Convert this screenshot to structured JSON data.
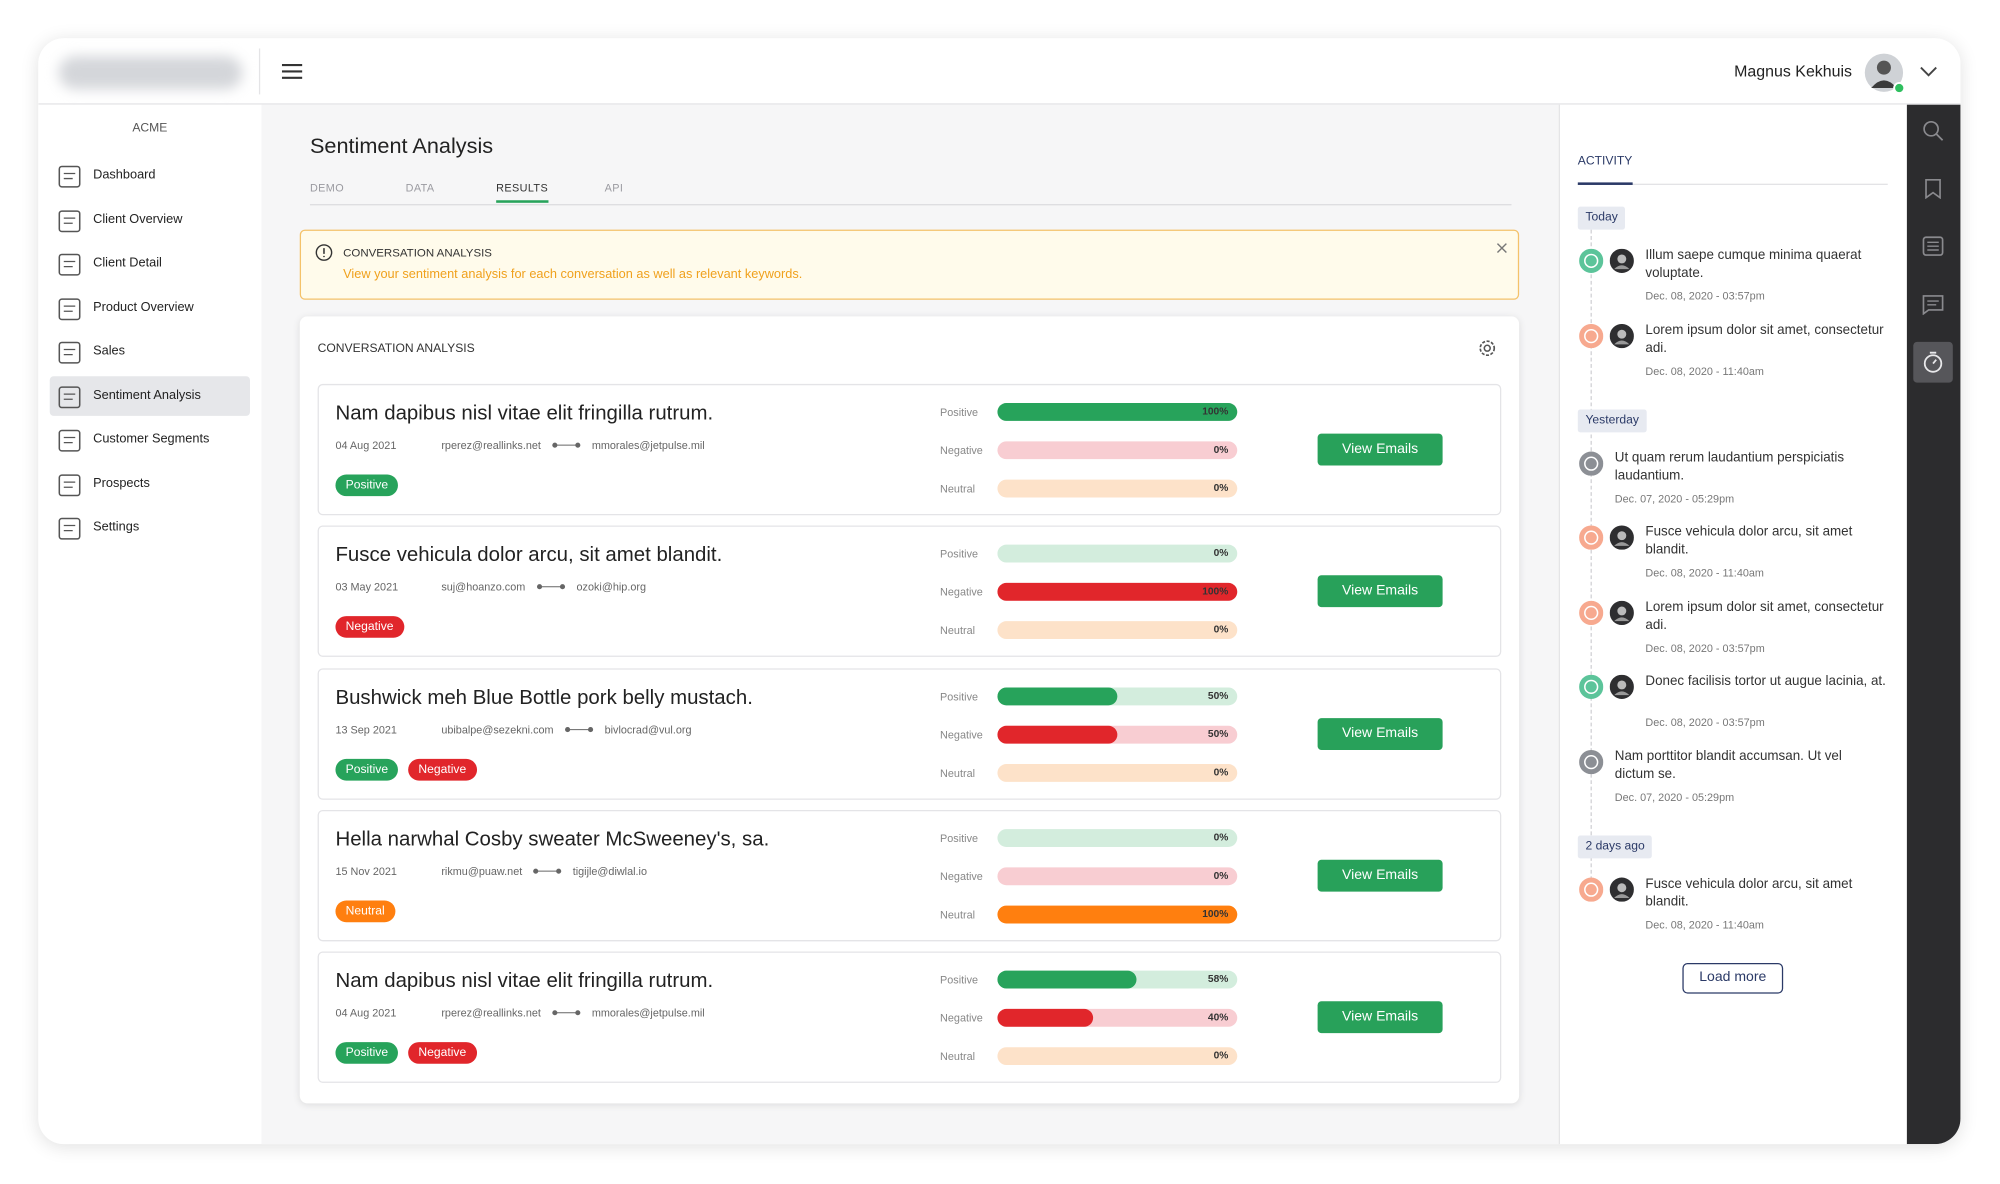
{
  "header": {
    "user_name": "Magnus Kekhuis"
  },
  "sidebar": {
    "org": "ACME",
    "items": [
      "Dashboard",
      "Client Overview",
      "Client Detail",
      "Product Overview",
      "Sales",
      "Sentiment Analysis",
      "Customer Segments",
      "Prospects",
      "Settings"
    ],
    "active": 5
  },
  "page": {
    "title": "Sentiment Analysis",
    "tabs": [
      "DEMO",
      "DATA",
      "RESULTS",
      "API"
    ],
    "active_tab": 2
  },
  "alert": {
    "title": "CONVERSATION ANALYSIS",
    "message": "View your sentiment analysis for each conversation as well as relevant keywords."
  },
  "analysis": {
    "title": "CONVERSATION ANALYSIS",
    "button_label": "View Emails",
    "sentiments": [
      {
        "name": "Positive",
        "color": "#27a35b",
        "track": "#d3eddd"
      },
      {
        "name": "Negative",
        "color": "#e1262b",
        "track": "#f8cdd2"
      },
      {
        "name": "Neutral",
        "color": "#ff7f0f",
        "track": "#fde2c9"
      }
    ],
    "conversations": [
      {
        "title": "Nam dapibus nisl vitae elit fringilla rutrum.",
        "date": "04 Aug 2021",
        "from": "rperez@reallinks.net",
        "to": "mmorales@jetpulse.mil",
        "tags": [
          {
            "label": "Positive",
            "color": "#27a35b"
          }
        ],
        "scores": [
          100,
          0,
          0
        ],
        "score_labels": [
          "100%",
          "0%",
          "0%"
        ]
      },
      {
        "title": "Fusce vehicula dolor arcu, sit amet blandit.",
        "date": "03 May 2021",
        "from": "suj@hoanzo.com",
        "to": "ozoki@hip.org",
        "tags": [
          {
            "label": "Negative",
            "color": "#e1262b"
          }
        ],
        "scores": [
          0,
          100,
          0
        ],
        "score_labels": [
          "0%",
          "100%",
          "0%"
        ]
      },
      {
        "title": "Bushwick meh Blue Bottle pork belly mustach.",
        "date": "13 Sep 2021",
        "from": "ubibalpe@sezekni.com",
        "to": "bivlocrad@vul.org",
        "tags": [
          {
            "label": "Positive",
            "color": "#27a35b"
          },
          {
            "label": "Negative",
            "color": "#e1262b"
          }
        ],
        "scores": [
          50,
          50,
          0
        ],
        "score_labels": [
          "50%",
          "50%",
          "0%"
        ]
      },
      {
        "title": "Hella narwhal Cosby sweater McSweeney's, sa.",
        "date": "15 Nov 2021",
        "from": "rikmu@puaw.net",
        "to": "tigijle@diwlal.io",
        "tags": [
          {
            "label": "Neutral",
            "color": "#ff7f0f"
          }
        ],
        "scores": [
          0,
          0,
          100
        ],
        "score_labels": [
          "0%",
          "0%",
          "100%"
        ]
      },
      {
        "title": "Nam dapibus nisl vitae elit fringilla rutrum.",
        "date": "04 Aug 2021",
        "from": "rperez@reallinks.net",
        "to": "mmorales@jetpulse.mil",
        "tags": [
          {
            "label": "Positive",
            "color": "#27a35b"
          },
          {
            "label": "Negative",
            "color": "#e1262b"
          }
        ],
        "scores": [
          58,
          40,
          0
        ],
        "score_labels": [
          "58%",
          "40%",
          "0%"
        ]
      }
    ]
  },
  "activity": {
    "title": "ACTIVITY",
    "load_more": "Load more",
    "groups": [
      {
        "label": "Today",
        "items": [
          {
            "text": "Illum saepe cumque minima quaerat voluptate.",
            "time": "Dec. 08, 2020 - 03:57pm",
            "color": "#5cc49a",
            "avatar": true
          },
          {
            "text": "Lorem ipsum dolor sit amet, consectetur adi.",
            "time": "Dec. 08, 2020 - 11:40am",
            "color": "#f7a98f",
            "avatar": true
          }
        ]
      },
      {
        "label": "Yesterday",
        "items": [
          {
            "text": "Ut quam rerum laudantium perspiciatis laudantium.",
            "time": "Dec. 07, 2020 - 05:29pm",
            "color": "#8c8f95",
            "avatar": false
          },
          {
            "text": "Fusce vehicula dolor arcu, sit amet blandit.",
            "time": "Dec. 08, 2020 - 11:40am",
            "color": "#f7a98f",
            "avatar": true
          },
          {
            "text": "Lorem ipsum dolor sit amet, consectetur adi.",
            "time": "Dec. 08, 2020 - 03:57pm",
            "color": "#f7a98f",
            "avatar": true
          },
          {
            "text": "Donec facilisis tortor ut augue lacinia, at.",
            "time": "Dec. 08, 2020 - 03:57pm",
            "color": "#5cc49a",
            "avatar": true
          },
          {
            "text": "Nam porttitor blandit accumsan. Ut vel dictum se.",
            "time": "Dec. 07, 2020 - 05:29pm",
            "color": "#8c8f95",
            "avatar": false
          }
        ]
      },
      {
        "label": "2 days ago",
        "items": [
          {
            "text": "Fusce vehicula dolor arcu, sit amet blandit.",
            "time": "Dec. 08, 2020 - 11:40am",
            "color": "#f7a98f",
            "avatar": true
          }
        ]
      }
    ]
  }
}
